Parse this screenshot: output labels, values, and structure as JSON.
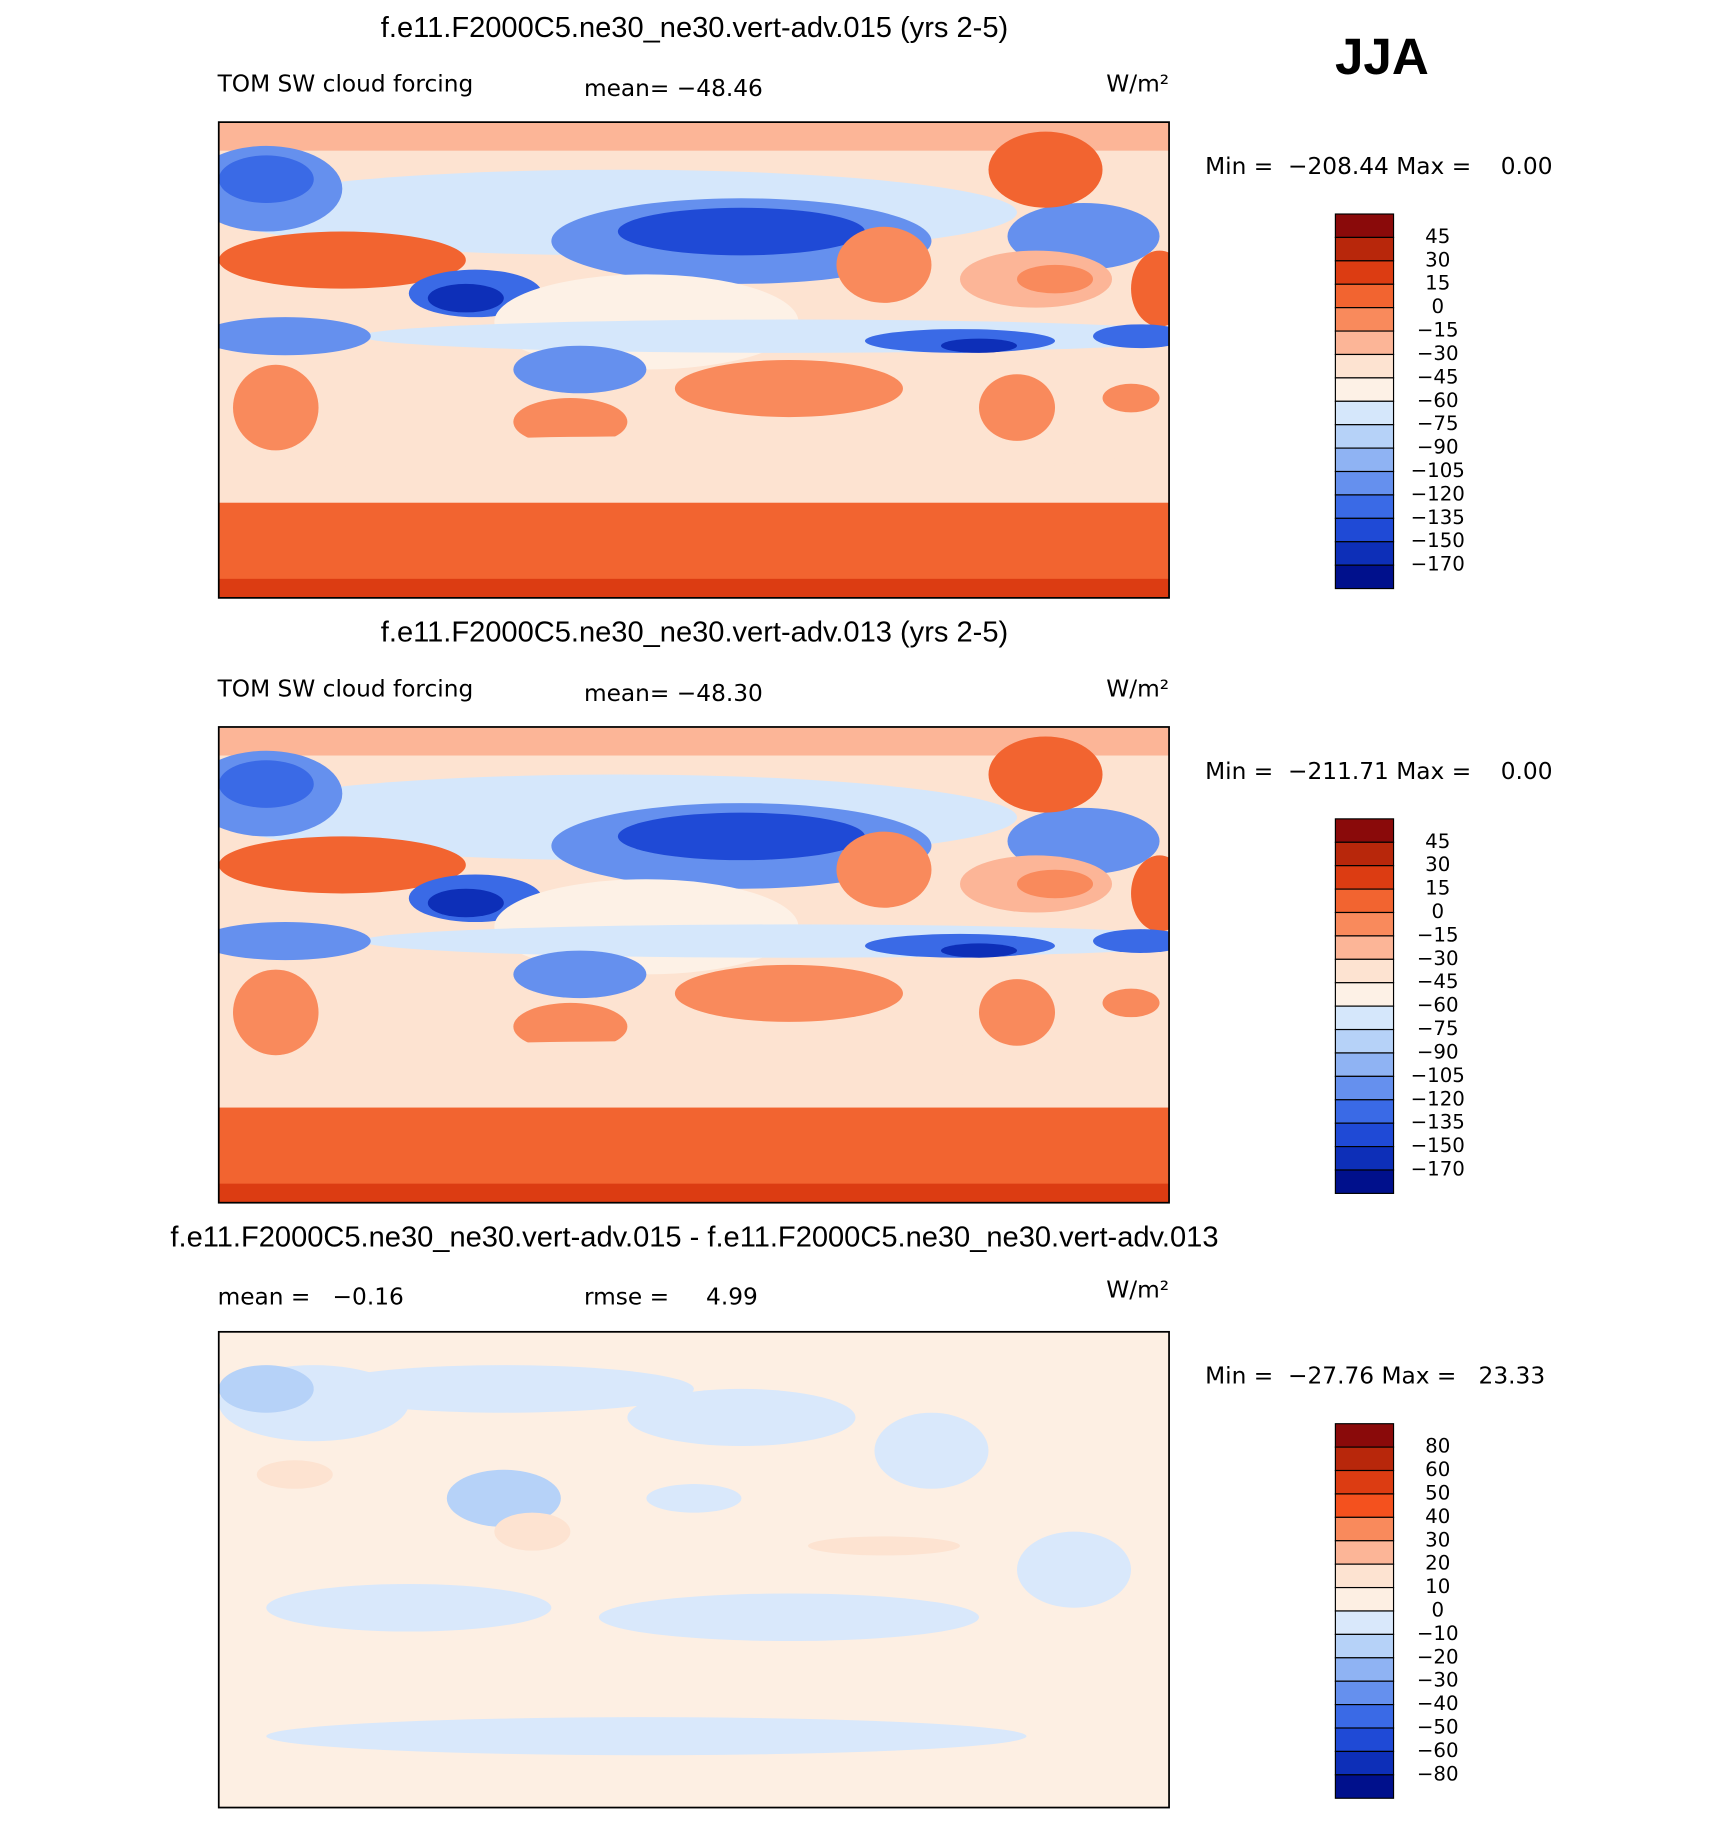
{
  "season": "JJA",
  "panels": [
    {
      "title": "f.e11.F2000C5.ne30_ne30.vert-adv.015 (yrs 2-5)",
      "left_label": "TOM SW cloud forcing",
      "center_label": "mean= −48.46",
      "units": "W/m²",
      "min_max": "Min =  −208.44 Max =    0.00",
      "colorbar": {
        "labels": [
          "45",
          "30",
          "15",
          "0",
          "−15",
          "−30",
          "−45",
          "−60",
          "−75",
          "−90",
          "−105",
          "−120",
          "−135",
          "−150",
          "−170"
        ],
        "colors": [
          "#8a0a0a",
          "#b8270b",
          "#dc3c12",
          "#f26430",
          "#f98a5c",
          "#fcb597",
          "#fde3d1",
          "#fdf1e6",
          "#d5e7fb",
          "#b6d2f8",
          "#8fb3f3",
          "#6590ee",
          "#3a6ae6",
          "#1f4ad6",
          "#0d2fb8",
          "#00108c"
        ]
      }
    },
    {
      "title": "f.e11.F2000C5.ne30_ne30.vert-adv.013 (yrs 2-5)",
      "left_label": "TOM SW cloud forcing",
      "center_label": "mean= −48.30",
      "units": "W/m²",
      "min_max": "Min =  −211.71 Max =    0.00",
      "colorbar": {
        "labels": [
          "45",
          "30",
          "15",
          "0",
          "−15",
          "−30",
          "−45",
          "−60",
          "−75",
          "−90",
          "−105",
          "−120",
          "−135",
          "−150",
          "−170"
        ],
        "colors": [
          "#8a0a0a",
          "#b8270b",
          "#dc3c12",
          "#f26430",
          "#f98a5c",
          "#fcb597",
          "#fde3d1",
          "#fdf1e6",
          "#d5e7fb",
          "#b6d2f8",
          "#8fb3f3",
          "#6590ee",
          "#3a6ae6",
          "#1f4ad6",
          "#0d2fb8",
          "#00108c"
        ]
      }
    },
    {
      "title": "f.e11.F2000C5.ne30_ne30.vert-adv.015 - f.e11.F2000C5.ne30_ne30.vert-adv.013",
      "left_label": "mean =   −0.16",
      "center_label": "rmse =     4.99",
      "units": "W/m²",
      "min_max": "Min =  −27.76 Max =   23.33",
      "colorbar": {
        "labels": [
          "80",
          "60",
          "50",
          "40",
          "30",
          "20",
          "10",
          "0",
          "−10",
          "−20",
          "−30",
          "−40",
          "−50",
          "−60",
          "−80"
        ],
        "colors": [
          "#8a0a0a",
          "#b8270b",
          "#dc3c12",
          "#f4511e",
          "#f98a5c",
          "#fcb597",
          "#fde3d1",
          "#fdefe3",
          "#d9e8fb",
          "#b6d2f8",
          "#8fb3f3",
          "#6590ee",
          "#3a6ae6",
          "#1f4ad6",
          "#0d2fb8",
          "#00108c"
        ]
      }
    }
  ]
}
